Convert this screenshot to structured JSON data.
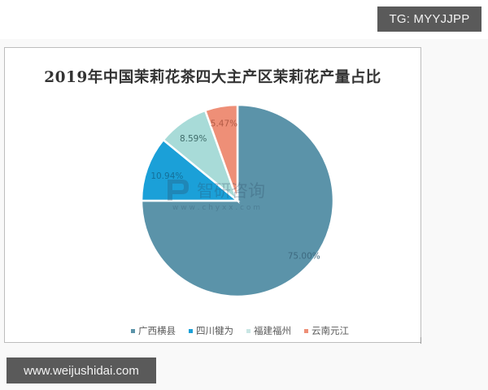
{
  "watermark_top": {
    "text": "TG: MYYJJPP"
  },
  "watermark_bottom": {
    "text": "www.weijushidai.com"
  },
  "chart_watermark": {
    "brand": "智研咨询",
    "url": "w w w . c h y x x . c o m"
  },
  "chart_data": {
    "type": "pie",
    "title": "2019年中国茉莉花茶四大主产区茉莉花产量占比",
    "categories": [
      "广西横县",
      "四川犍为",
      "福建福州",
      "云南元江"
    ],
    "values": [
      75.0,
      10.94,
      8.59,
      5.47
    ],
    "labels": [
      "75.00%",
      "10.94%",
      "8.59%",
      "5.47%"
    ],
    "colors": [
      "#5b93a9",
      "#1ba0d8",
      "#a8dbd8",
      "#ee8f77"
    ],
    "start_angle": "12 o'clock",
    "direction": "clockwise",
    "legend_position": "bottom",
    "xlabel": "",
    "ylabel": ""
  }
}
